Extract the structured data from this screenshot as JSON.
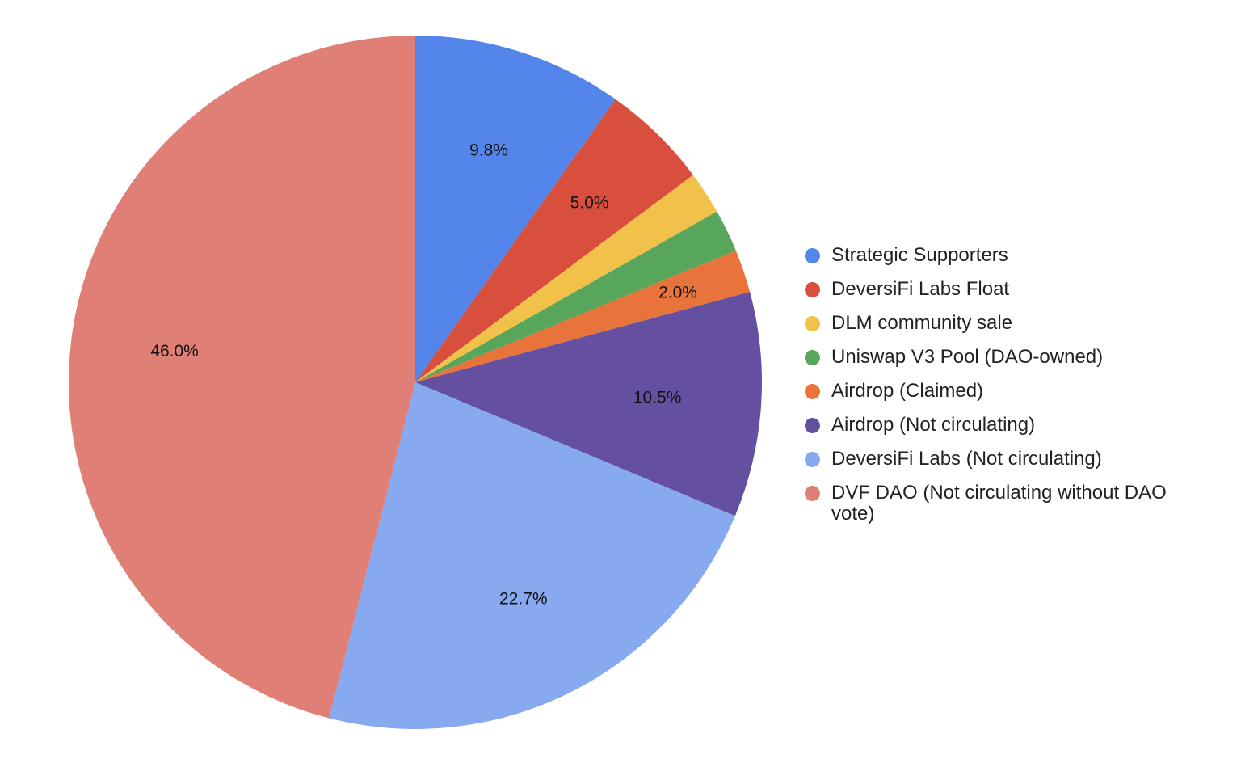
{
  "chart_data": {
    "type": "pie",
    "title": "",
    "legend_position": "right",
    "start_angle_deg": 0,
    "direction": "clockwise",
    "slices": [
      {
        "name": "Strategic Supporters",
        "value": 9.8,
        "label": "9.8%",
        "color": "#5385EB"
      },
      {
        "name": "DeversiFi Labs Float",
        "value": 5.0,
        "label": "5.0%",
        "color": "#D94F3D"
      },
      {
        "name": "DLM community sale",
        "value": 2.0,
        "label": "",
        "color": "#F2C14A"
      },
      {
        "name": "Uniswap V3 Pool (DAO-owned)",
        "value": 2.0,
        "label": "",
        "color": "#58A55C"
      },
      {
        "name": "Airdrop (Claimed)",
        "value": 2.0,
        "label": "2.0%",
        "color": "#E8743B"
      },
      {
        "name": "Airdrop (Not circulating)",
        "value": 10.5,
        "label": "10.5%",
        "color": "#644FA1"
      },
      {
        "name": "DeversiFi Labs (Not circulating)",
        "value": 22.7,
        "label": "22.7%",
        "color": "#86A9F0"
      },
      {
        "name": "DVF DAO (Not circulating without DAO vote)",
        "value": 46.0,
        "label": "46.0%",
        "color": "#E07F75"
      }
    ]
  }
}
